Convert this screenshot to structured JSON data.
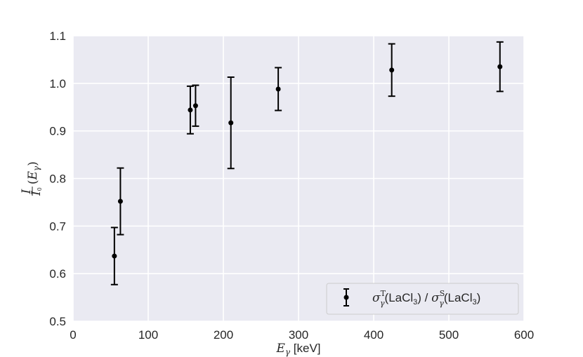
{
  "chart_data": {
    "type": "scatter",
    "x": [
      55,
      63,
      156,
      163,
      210,
      273,
      424,
      568
    ],
    "y": [
      0.637,
      0.752,
      0.944,
      0.953,
      0.917,
      0.988,
      1.028,
      1.035
    ],
    "yerr": [
      0.06,
      0.07,
      0.05,
      0.043,
      0.096,
      0.045,
      0.055,
      0.052
    ],
    "xlim": [
      0,
      600
    ],
    "ylim": [
      0.5,
      1.1
    ],
    "x_ticks": [
      0,
      100,
      200,
      300,
      400,
      500,
      600
    ],
    "y_ticks": [
      0.5,
      0.6,
      0.7,
      0.8,
      0.9,
      1.0,
      1.1
    ],
    "x_tick_labels": [
      "0",
      "100",
      "200",
      "300",
      "400",
      "500",
      "600"
    ],
    "y_tick_labels": [
      "0.5",
      "0.6",
      "0.7",
      "0.8",
      "0.9",
      "1.0",
      "1.1"
    ],
    "xlabel": {
      "symbol": "E",
      "subscript": "γ",
      "unit": " [keV]"
    },
    "ylabel": {
      "num": "I",
      "den_main": "I",
      "den_sub": "0",
      "rest_open": "(",
      "rest_E": "E",
      "rest_sub": "γ",
      "rest_close": ")"
    },
    "legend": {
      "placement": "lower-right",
      "entries": [
        {
          "sigma": "σ",
          "sub": "γ",
          "sup1": "T",
          "sup2": "S",
          "mid1": "(LaCl",
          "three": "3",
          "mid2": ") / ",
          "mid3": "(LaCl",
          "end": ")"
        }
      ]
    },
    "grid": true,
    "colors": {
      "background": "#eaeaf2",
      "grid": "#ffffff",
      "marker": "#000000",
      "legend_border": "#cccccc"
    }
  }
}
